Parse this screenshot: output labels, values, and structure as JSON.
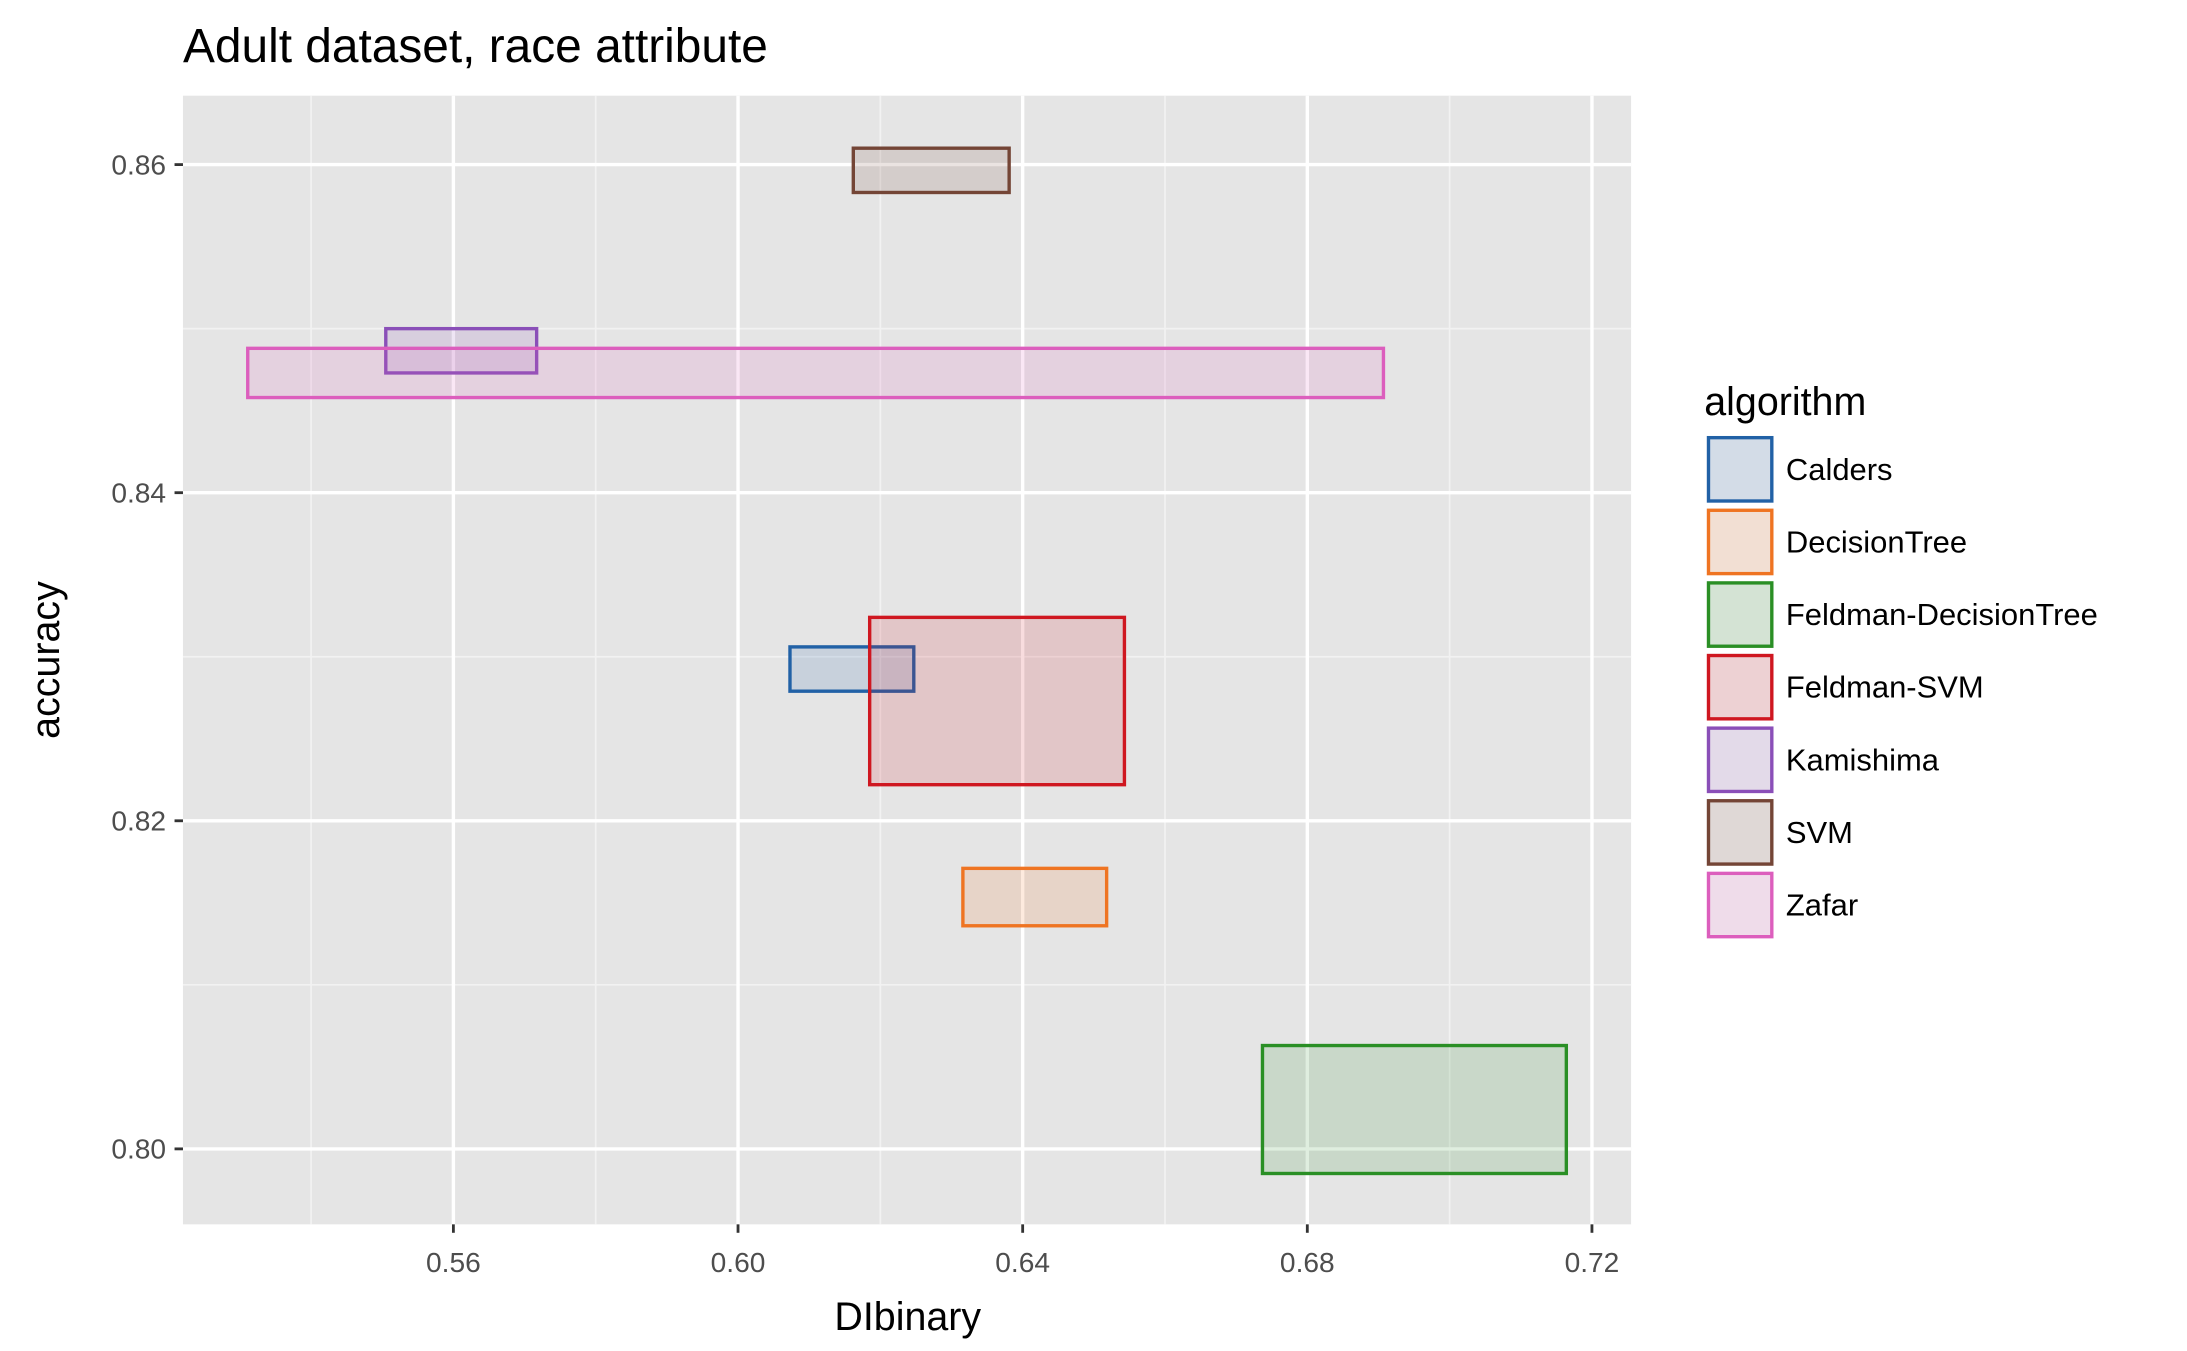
{
  "chart_data": {
    "type": "rect",
    "title": "Adult dataset, race attribute",
    "x_label": "DIbinary",
    "y_label": "accuracy",
    "legend_title": "algorithm",
    "legend": "right",
    "grid": true,
    "xlim": [
      0.522,
      0.7255
    ],
    "ylim": [
      0.7954,
      0.8642
    ],
    "xticks": [
      {
        "value": 0.56,
        "label": "0.56"
      },
      {
        "value": 0.6,
        "label": "0.60"
      },
      {
        "value": 0.64,
        "label": "0.64"
      },
      {
        "value": 0.68,
        "label": "0.68"
      },
      {
        "value": 0.72,
        "label": "0.72"
      }
    ],
    "yticks": [
      {
        "value": 0.8,
        "label": "0.80"
      },
      {
        "value": 0.82,
        "label": "0.82"
      },
      {
        "value": 0.84,
        "label": "0.84"
      },
      {
        "value": 0.86,
        "label": "0.86"
      }
    ],
    "xminorticks": [
      0.54,
      0.58,
      0.62,
      0.66,
      0.7
    ],
    "yminorticks": [
      0.81,
      0.83,
      0.85
    ],
    "series": [
      {
        "name": "Calders",
        "color": "#2161a6",
        "x": [
          0.6073,
          0.6247
        ],
        "y": [
          0.8279,
          0.8306
        ]
      },
      {
        "name": "DecisionTree",
        "color": "#ef7422",
        "x": [
          0.6316,
          0.6518
        ],
        "y": [
          0.8136,
          0.8171
        ]
      },
      {
        "name": "Feldman-DecisionTree",
        "color": "#2a8f25",
        "x": [
          0.6737,
          0.7164
        ],
        "y": [
          0.7985,
          0.8063
        ]
      },
      {
        "name": "Feldman-SVM",
        "color": "#cf1720",
        "x": [
          0.6185,
          0.6543
        ],
        "y": [
          0.8222,
          0.8324
        ]
      },
      {
        "name": "Kamishima",
        "color": "#8a4fb8",
        "x": [
          0.5505,
          0.5717
        ],
        "y": [
          0.8473,
          0.85
        ]
      },
      {
        "name": "SVM",
        "color": "#744536",
        "x": [
          0.6162,
          0.6381
        ],
        "y": [
          0.8583,
          0.861
        ]
      },
      {
        "name": "Zafar",
        "color": "#dc5ebd",
        "x": [
          0.5311,
          0.6907
        ],
        "y": [
          0.8458,
          0.8488
        ]
      }
    ]
  }
}
